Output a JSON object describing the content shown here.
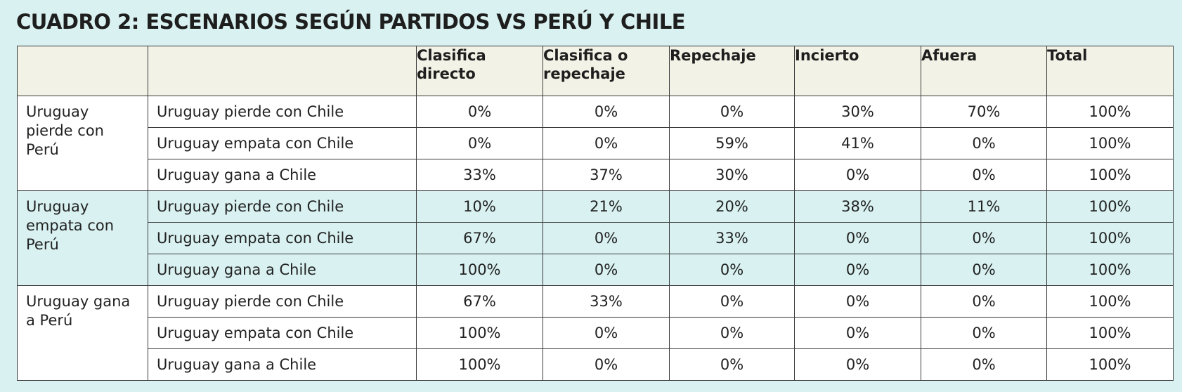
{
  "title": "CUADRO 2: ESCENARIOS SEGÚN PARTIDOS VS PERÚ Y CHILE",
  "headers": [
    "",
    "",
    "Clasifica directo",
    "Clasifica o repechaje",
    "Repechaje",
    "Incierto",
    "Afuera",
    "Total"
  ],
  "groups": [
    {
      "label": "Uruguay pierde con Perú",
      "rows": [
        {
          "scenario": "Uruguay pierde con Chile",
          "values": [
            "0%",
            "0%",
            "0%",
            "30%",
            "70%",
            "100%"
          ]
        },
        {
          "scenario": "Uruguay empata con Chile",
          "values": [
            "0%",
            "0%",
            "59%",
            "41%",
            "0%",
            "100%"
          ]
        },
        {
          "scenario": "Uruguay gana a Chile",
          "values": [
            "33%",
            "37%",
            "30%",
            "0%",
            "0%",
            "100%"
          ]
        }
      ]
    },
    {
      "label": "Uruguay empata con Perú",
      "rows": [
        {
          "scenario": "Uruguay pierde con Chile",
          "values": [
            "10%",
            "21%",
            "20%",
            "38%",
            "11%",
            "100%"
          ]
        },
        {
          "scenario": "Uruguay empata con Chile",
          "values": [
            "67%",
            "0%",
            "33%",
            "0%",
            "0%",
            "100%"
          ]
        },
        {
          "scenario": "Uruguay gana a Chile",
          "values": [
            "100%",
            "0%",
            "0%",
            "0%",
            "0%",
            "100%"
          ]
        }
      ]
    },
    {
      "label": "Uruguay gana a Perú",
      "rows": [
        {
          "scenario": "Uruguay pierde con Chile",
          "values": [
            "67%",
            "33%",
            "0%",
            "0%",
            "0%",
            "100%"
          ]
        },
        {
          "scenario": "Uruguay empata con Chile",
          "values": [
            "100%",
            "0%",
            "0%",
            "0%",
            "0%",
            "100%"
          ]
        },
        {
          "scenario": "Uruguay gana a Chile",
          "values": [
            "100%",
            "0%",
            "0%",
            "0%",
            "0%",
            "100%"
          ]
        }
      ]
    }
  ],
  "colors": {
    "page_background": "#d9f1f1",
    "header_background": "#f2f2e6",
    "row_white": "#ffffff",
    "row_tint": "#d9f1f1",
    "border": "#3a3a3a",
    "text": "#222222"
  }
}
